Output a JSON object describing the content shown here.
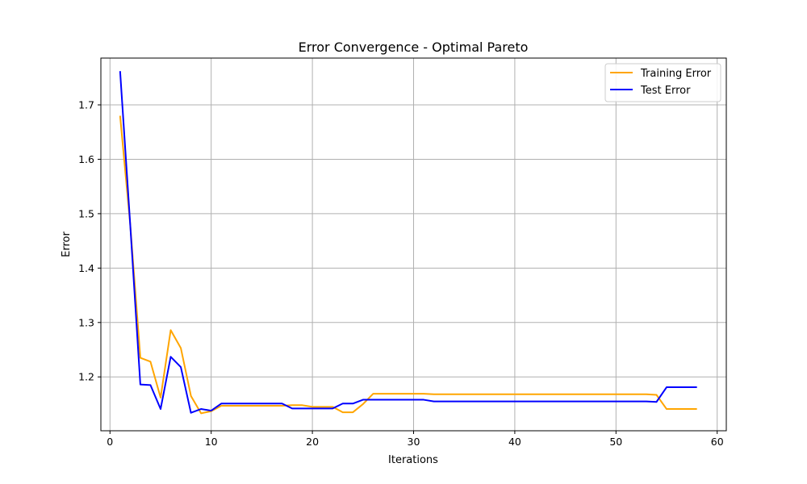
{
  "chart_data": {
    "type": "line",
    "title": "Error Convergence - Optimal Pareto",
    "xlabel": "Iterations",
    "ylabel": "Error",
    "xlim": [
      -0.9,
      60.9
    ],
    "ylim": [
      1.101,
      1.786
    ],
    "xticks": [
      0,
      10,
      20,
      30,
      40,
      50,
      60
    ],
    "yticks": [
      1.2,
      1.3,
      1.4,
      1.5,
      1.6,
      1.7
    ],
    "ytick_labels": [
      "1.2",
      "1.3",
      "1.4",
      "1.5",
      "1.6",
      "1.7"
    ],
    "grid": true,
    "legend_position": "top-right",
    "x": [
      1,
      2,
      3,
      4,
      5,
      6,
      7,
      8,
      9,
      10,
      11,
      12,
      13,
      14,
      15,
      16,
      17,
      18,
      19,
      20,
      21,
      22,
      23,
      24,
      25,
      26,
      27,
      28,
      29,
      30,
      31,
      32,
      33,
      34,
      35,
      36,
      37,
      38,
      39,
      40,
      41,
      42,
      43,
      44,
      45,
      46,
      47,
      48,
      49,
      50,
      51,
      52,
      53,
      54,
      55,
      56,
      57,
      58
    ],
    "series": [
      {
        "name": "Training Error",
        "color": "#ffa500",
        "values": [
          1.68,
          1.48,
          1.235,
          1.228,
          1.162,
          1.286,
          1.253,
          1.165,
          1.133,
          1.137,
          1.147,
          1.147,
          1.147,
          1.147,
          1.147,
          1.147,
          1.147,
          1.148,
          1.148,
          1.145,
          1.145,
          1.145,
          1.135,
          1.135,
          1.15,
          1.169,
          1.169,
          1.169,
          1.169,
          1.169,
          1.169,
          1.168,
          1.168,
          1.168,
          1.168,
          1.168,
          1.168,
          1.168,
          1.168,
          1.168,
          1.168,
          1.168,
          1.168,
          1.168,
          1.168,
          1.168,
          1.168,
          1.168,
          1.168,
          1.168,
          1.168,
          1.168,
          1.168,
          1.167,
          1.141,
          1.141,
          1.141,
          1.141
        ]
      },
      {
        "name": "Test Error",
        "color": "#0000ff",
        "values": [
          1.762,
          1.48,
          1.186,
          1.185,
          1.141,
          1.237,
          1.218,
          1.134,
          1.141,
          1.138,
          1.151,
          1.151,
          1.151,
          1.151,
          1.151,
          1.151,
          1.151,
          1.142,
          1.142,
          1.142,
          1.142,
          1.142,
          1.151,
          1.151,
          1.158,
          1.158,
          1.158,
          1.158,
          1.158,
          1.158,
          1.158,
          1.155,
          1.155,
          1.155,
          1.155,
          1.155,
          1.155,
          1.155,
          1.155,
          1.155,
          1.155,
          1.155,
          1.155,
          1.155,
          1.155,
          1.155,
          1.155,
          1.155,
          1.155,
          1.155,
          1.155,
          1.155,
          1.155,
          1.154,
          1.181,
          1.181,
          1.181,
          1.181
        ]
      }
    ]
  }
}
